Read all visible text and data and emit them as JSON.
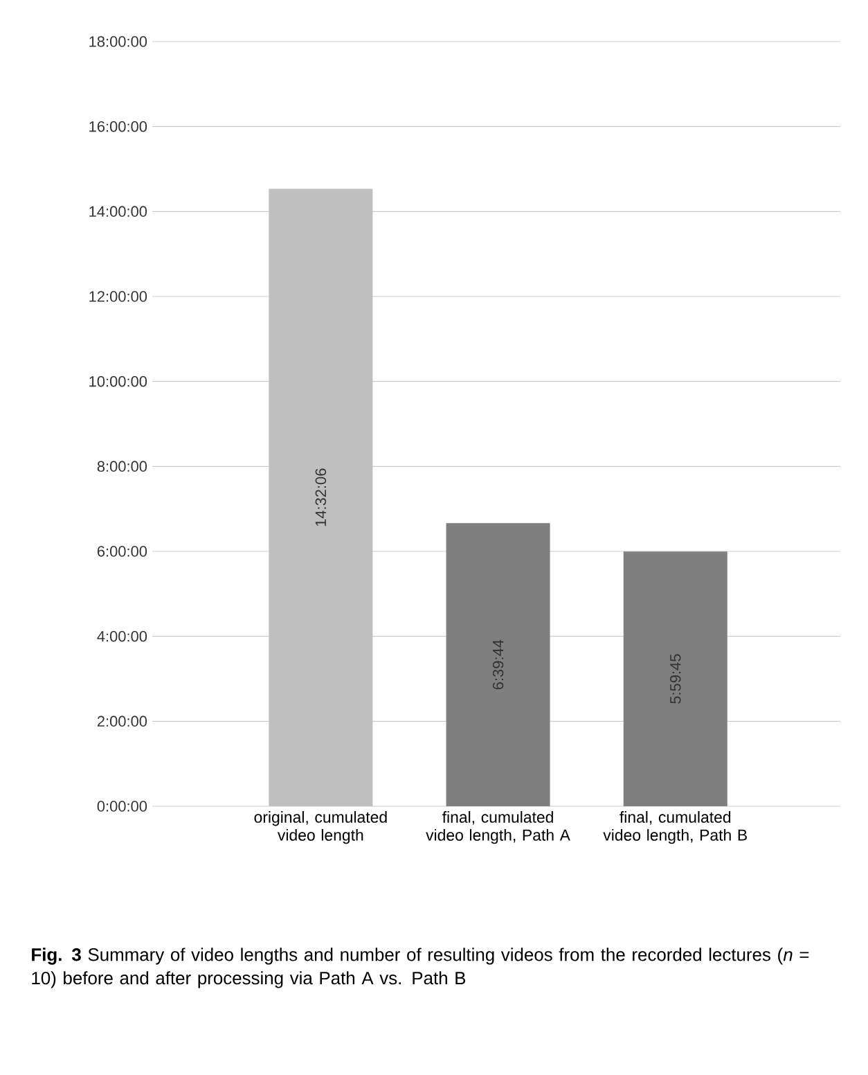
{
  "chart_data": {
    "type": "bar",
    "categories": [
      "original, cumulated video length",
      "final, cumulated video length, Path A",
      "final, cumulated video length, Path B"
    ],
    "values": [
      14.535,
      6.6622,
      5.9958
    ],
    "value_labels": [
      "14:32:06",
      "6:39:44",
      "5:59:45"
    ],
    "colors": [
      "#bfbfbf",
      "#7f7f7f",
      "#7f7f7f"
    ],
    "ylim": [
      0,
      18
    ],
    "yticks": [
      {
        "value": 0,
        "label": "0:00:00"
      },
      {
        "value": 2,
        "label": "2:00:00"
      },
      {
        "value": 4,
        "label": "4:00:00"
      },
      {
        "value": 6,
        "label": "6:00:00"
      },
      {
        "value": 8,
        "label": "8:00:00"
      },
      {
        "value": 10,
        "label": "10:00:00"
      },
      {
        "value": 12,
        "label": "12:00:00"
      },
      {
        "value": 14,
        "label": "14:00:00"
      },
      {
        "value": 16,
        "label": "16:00:00"
      },
      {
        "value": 18,
        "label": "18:00:00"
      }
    ],
    "grid": "y",
    "annotations": [
      "**Fig. 3** Summary of video lengths and number of resulting videos from the recorded lectures (*n* = 10) before and after processing via Path A vs. Path B"
    ]
  }
}
